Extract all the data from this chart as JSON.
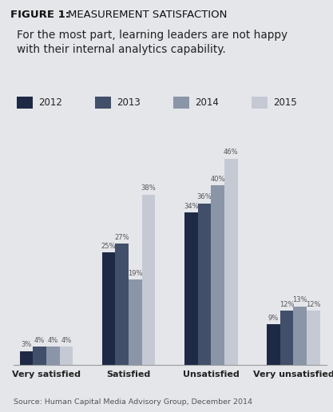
{
  "title_bold": "FIGURE 1: ",
  "title_normal": "MEASUREMENT SATISFACTION",
  "subtitle": "For the most part, learning leaders are not happy\nwith their internal analytics capability.",
  "source": "Source: Human Capital Media Advisory Group, December 2014",
  "categories": [
    "Very satisfied",
    "Satisfied",
    "Unsatisfied",
    "Very unsatisfied"
  ],
  "years": [
    "2012",
    "2013",
    "2014",
    "2015"
  ],
  "colors": [
    "#1e2a45",
    "#424f6a",
    "#8b95a8",
    "#c4c9d4"
  ],
  "values": [
    [
      3,
      4,
      4,
      4
    ],
    [
      25,
      27,
      19,
      38
    ],
    [
      34,
      36,
      40,
      46
    ],
    [
      9,
      12,
      13,
      12
    ]
  ],
  "background_color": "#e4e6ea",
  "title_bg_color": "#ffffff",
  "ylim": [
    0,
    52
  ],
  "bar_width": 0.17
}
